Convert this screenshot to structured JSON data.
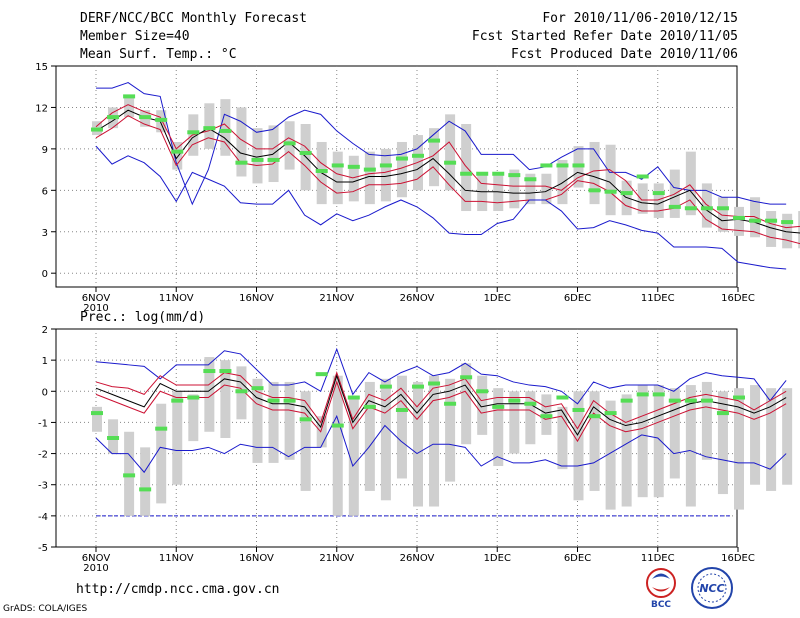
{
  "header": {
    "title": "DERF/NCC/BCC Monthly Forecast",
    "member_size": "Member Size=40",
    "variable": "Mean Surf. Temp.: °C",
    "period": "For 2010/11/06-2010/12/15",
    "started": "Fcst Started Refer Date 2010/11/05",
    "produced": "Fcst Produced Date 2010/11/06"
  },
  "footer": {
    "url": "http://cmdp.ncc.cma.gov.cn",
    "credit": "GrADS: COLA/IGES",
    "logo1_text": "BCC",
    "logo2_text": "NCC"
  },
  "colors": {
    "max": "#1a1acc",
    "min": "#1a1acc",
    "pct": "#cc1133",
    "mean": "#000000",
    "median": "#55dd55",
    "box": "#cfcfcf"
  },
  "chart_data": [
    {
      "type": "line",
      "title": "Mean Surf. Temp.: °C",
      "x_tick_labels": [
        "6NOV",
        "11NOV",
        "16NOV",
        "21NOV",
        "26NOV",
        "1DEC",
        "6DEC",
        "11DEC",
        "16DEC"
      ],
      "x_year_label": "2010",
      "y_tick_labels": [
        "0",
        "3",
        "6",
        "9",
        "12",
        "15"
      ],
      "ylim": [
        -1,
        15
      ],
      "grid": true,
      "series": [
        {
          "name": "max",
          "values": [
            13.4,
            13.4,
            13.8,
            13.0,
            12.8,
            8.0,
            5.0,
            7.5,
            11.5,
            11.0,
            10.2,
            10.4,
            11.3,
            11.8,
            11.5,
            10.3,
            9.4,
            8.6,
            8.5,
            8.6,
            9.0,
            10.0,
            11.0,
            10.3,
            8.6,
            8.6,
            8.6,
            7.5,
            7.7,
            8.4,
            9.0,
            9.0,
            7.3,
            7.3,
            6.8,
            7.7,
            6.2,
            6.0,
            6.0,
            5.5,
            5.5,
            5.2,
            5.0,
            5.0
          ]
        },
        {
          "name": "p90",
          "values": [
            10.6,
            11.6,
            12.2,
            11.7,
            11.3,
            9.0,
            10.0,
            10.3,
            10.8,
            9.7,
            9.0,
            9.0,
            9.8,
            9.2,
            8.0,
            7.2,
            6.9,
            7.2,
            7.3,
            7.6,
            8.0,
            8.5,
            9.5,
            7.8,
            6.5,
            6.4,
            6.3,
            6.3,
            6.3,
            6.0,
            6.9,
            7.4,
            7.5,
            6.7,
            5.3,
            5.3,
            5.7,
            6.4,
            5.0,
            4.2,
            4.1,
            4.1,
            3.6,
            3.3,
            3.4
          ]
        },
        {
          "name": "mean",
          "values": [
            10.3,
            11.0,
            11.8,
            11.3,
            11.0,
            8.3,
            9.8,
            10.5,
            9.8,
            8.7,
            8.4,
            8.6,
            9.5,
            8.5,
            7.3,
            6.6,
            6.6,
            7.0,
            7.0,
            7.2,
            7.5,
            8.3,
            7.2,
            6.0,
            5.9,
            5.9,
            5.8,
            5.8,
            5.9,
            6.5,
            7.3,
            7.0,
            6.6,
            5.5,
            5.1,
            5.0,
            5.5,
            6.0,
            4.6,
            3.8,
            3.9,
            3.7,
            3.3,
            3.0,
            2.9
          ]
        },
        {
          "name": "p10",
          "values": [
            9.8,
            10.5,
            11.4,
            10.8,
            10.4,
            7.8,
            9.3,
            9.8,
            9.5,
            8.0,
            7.8,
            7.9,
            8.8,
            7.8,
            6.6,
            5.8,
            5.9,
            6.4,
            6.4,
            6.5,
            6.8,
            7.7,
            6.4,
            5.2,
            5.2,
            5.1,
            5.2,
            5.3,
            5.3,
            5.7,
            6.7,
            6.5,
            5.9,
            4.9,
            4.5,
            4.5,
            4.7,
            5.3,
            3.9,
            3.2,
            3.1,
            3.0,
            2.6,
            2.4,
            2.1
          ]
        },
        {
          "name": "min",
          "values": [
            9.2,
            7.9,
            8.5,
            8.0,
            7.0,
            5.2,
            7.3,
            6.8,
            6.3,
            5.1,
            5.0,
            5.0,
            6.0,
            4.2,
            3.5,
            4.3,
            3.8,
            4.2,
            4.8,
            5.3,
            4.8,
            4.0,
            2.9,
            2.8,
            2.8,
            3.6,
            3.9,
            5.3,
            5.3,
            4.5,
            3.2,
            3.3,
            3.8,
            3.5,
            3.1,
            2.9,
            1.9,
            1.9,
            1.9,
            1.8,
            0.8,
            0.6,
            0.4,
            0.3
          ]
        }
      ],
      "median_markers": [
        10.4,
        11.3,
        12.8,
        11.3,
        11.1,
        8.8,
        10.2,
        10.5,
        10.3,
        8.0,
        8.2,
        8.2,
        9.4,
        8.7,
        7.4,
        7.8,
        7.7,
        7.5,
        7.8,
        8.3,
        8.5,
        9.6,
        8.0,
        7.2,
        7.2,
        7.2,
        7.1,
        6.8,
        7.8,
        7.8,
        7.8,
        6.0,
        5.9,
        5.8,
        7.0,
        5.8,
        4.8,
        4.7,
        4.7,
        4.7,
        4.0,
        3.8,
        3.8,
        3.7
      ],
      "box_low": [
        10.0,
        10.5,
        11.3,
        10.6,
        10.2,
        7.5,
        8.5,
        9.0,
        8.5,
        7.0,
        6.5,
        6.6,
        7.5,
        6.0,
        5.0,
        5.0,
        5.2,
        5.0,
        5.2,
        5.5,
        6.0,
        6.3,
        6.0,
        4.5,
        4.5,
        4.5,
        4.7,
        5.0,
        5.0,
        5.0,
        6.2,
        5.0,
        4.2,
        4.2,
        4.3,
        4.0,
        4.0,
        4.2,
        3.3,
        3.0,
        2.7,
        2.6,
        1.9,
        1.8,
        1.8
      ],
      "box_high": [
        11.0,
        12.0,
        12.8,
        11.8,
        11.8,
        9.5,
        11.5,
        12.3,
        12.6,
        12.0,
        10.5,
        10.7,
        11.0,
        10.8,
        9.5,
        8.8,
        8.5,
        8.8,
        9.0,
        9.5,
        10.0,
        10.5,
        11.5,
        10.8,
        7.2,
        7.3,
        7.5,
        7.2,
        7.2,
        8.2,
        9.2,
        9.5,
        9.3,
        6.7,
        6.5,
        6.5,
        7.5,
        8.8,
        6.5,
        5.5,
        4.8,
        5.5,
        4.5,
        4.3,
        4.5,
        6.0
      ]
    },
    {
      "type": "line",
      "title": "Prec.: log(mm/d)",
      "x_tick_labels": [
        "6NOV",
        "11NOV",
        "16NOV",
        "21NOV",
        "26NOV",
        "1DEC",
        "6DEC",
        "11DEC",
        "16DEC"
      ],
      "x_year_label": "2010",
      "y_tick_labels": [
        "-5",
        "-4",
        "-3",
        "-2",
        "-1",
        "0",
        "1",
        "2"
      ],
      "ylim": [
        -5,
        2
      ],
      "grid": true,
      "floor_value": -4,
      "series": [
        {
          "name": "max",
          "values": [
            0.95,
            0.9,
            0.85,
            0.8,
            0.4,
            0.85,
            0.85,
            0.85,
            1.3,
            1.2,
            0.7,
            0.2,
            0.2,
            0.3,
            0.0,
            1.35,
            -0.1,
            0.6,
            0.3,
            0.6,
            0.8,
            0.5,
            0.6,
            0.9,
            0.55,
            0.5,
            0.3,
            0.2,
            0.15,
            0.0,
            -0.4,
            0.3,
            0.1,
            0.2,
            0.2,
            0.2,
            0.0,
            0.4,
            0.6,
            0.5,
            0.45,
            0.4,
            -0.3,
            0.35
          ]
        },
        {
          "name": "p90",
          "values": [
            0.3,
            0.15,
            0.1,
            -0.1,
            0.5,
            0.2,
            0.2,
            0.2,
            0.6,
            0.5,
            0.0,
            -0.2,
            -0.2,
            -0.3,
            -1.0,
            0.6,
            -0.9,
            -0.1,
            -0.3,
            0.1,
            -0.5,
            0.1,
            0.2,
            0.4,
            -0.3,
            -0.2,
            -0.2,
            -0.2,
            -0.5,
            -0.4,
            -1.2,
            -0.3,
            -0.7,
            -1.0,
            -0.8,
            -0.6,
            -0.4,
            -0.2,
            -0.1,
            -0.2,
            -0.3,
            -0.6,
            -0.3,
            0.0
          ]
        },
        {
          "name": "mean",
          "values": [
            0.1,
            -0.1,
            -0.3,
            -0.5,
            0.25,
            0.0,
            0.0,
            0.0,
            0.4,
            0.3,
            -0.2,
            -0.4,
            -0.4,
            -0.5,
            -1.15,
            0.5,
            -1.0,
            -0.3,
            -0.5,
            -0.1,
            -0.7,
            -0.1,
            0.0,
            0.2,
            -0.5,
            -0.4,
            -0.4,
            -0.4,
            -0.7,
            -0.6,
            -1.4,
            -0.5,
            -0.9,
            -1.1,
            -1.0,
            -0.8,
            -0.6,
            -0.4,
            -0.3,
            -0.4,
            -0.5,
            -0.7,
            -0.5,
            -0.2
          ]
        },
        {
          "name": "p10",
          "values": [
            -0.1,
            -0.3,
            -0.5,
            -0.7,
            0.0,
            -0.2,
            -0.2,
            -0.2,
            0.2,
            0.1,
            -0.4,
            -0.6,
            -0.6,
            -0.7,
            -1.3,
            0.3,
            -1.2,
            -0.5,
            -0.7,
            -0.3,
            -0.9,
            -0.3,
            -0.2,
            0.0,
            -0.7,
            -0.6,
            -0.6,
            -0.6,
            -0.9,
            -0.8,
            -1.6,
            -0.7,
            -1.1,
            -1.3,
            -1.2,
            -1.0,
            -0.8,
            -0.6,
            -0.5,
            -0.6,
            -0.7,
            -0.9,
            -0.7,
            -0.4
          ]
        },
        {
          "name": "min",
          "values": [
            -1.5,
            -2.0,
            -2.0,
            -2.6,
            -1.8,
            -1.9,
            -1.9,
            -1.8,
            -2.0,
            -1.7,
            -1.8,
            -1.8,
            -2.1,
            -1.8,
            -1.8,
            -0.8,
            -2.4,
            -1.8,
            -1.1,
            -1.6,
            -2.0,
            -1.7,
            -1.7,
            -1.8,
            -2.4,
            -2.1,
            -2.3,
            -2.3,
            -2.2,
            -2.4,
            -2.4,
            -2.3,
            -2.0,
            -1.7,
            -1.4,
            -1.5,
            -2.0,
            -1.9,
            -2.1,
            -2.2,
            -2.3,
            -2.3,
            -2.5,
            -2.0
          ]
        }
      ],
      "median_markers": [
        -0.7,
        -1.5,
        -2.7,
        -3.15,
        -1.2,
        -0.3,
        -0.2,
        0.65,
        0.65,
        0.0,
        0.1,
        -0.3,
        -0.3,
        -0.9,
        0.55,
        -1.1,
        -0.2,
        -0.5,
        0.15,
        -0.6,
        0.15,
        0.25,
        -0.4,
        0.45,
        0.0,
        -0.5,
        -0.3,
        -0.4,
        -0.8,
        -0.2,
        -0.6,
        -0.8,
        -0.7,
        -0.3,
        -0.1,
        -0.1,
        -0.3,
        -0.3,
        -0.3,
        -0.7,
        -0.2
      ],
      "box_low": [
        -1.3,
        -2.0,
        -4.0,
        -4.0,
        -3.6,
        -3.0,
        -1.6,
        -1.3,
        -1.5,
        -0.9,
        -2.3,
        -2.3,
        -2.2,
        -3.2,
        -1.8,
        -4.0,
        -4.0,
        -3.2,
        -3.5,
        -2.8,
        -3.7,
        -3.7,
        -2.9,
        -1.7,
        -1.4,
        -2.4,
        -2.0,
        -1.7,
        -1.4,
        -2.5,
        -3.5,
        -3.2,
        -3.8,
        -3.7,
        -3.4,
        -3.4,
        -2.8,
        -3.7,
        -2.2,
        -3.3,
        -3.8,
        -3.0,
        -3.2,
        -3.0
      ],
      "box_high": [
        -0.5,
        -0.9,
        -1.3,
        -1.8,
        -0.4,
        0.0,
        -0.1,
        1.1,
        1.0,
        0.8,
        0.4,
        0.3,
        0.3,
        0.0,
        -0.8,
        0.5,
        -0.2,
        0.3,
        0.4,
        0.5,
        0.3,
        0.5,
        0.4,
        0.9,
        0.5,
        0.1,
        0.0,
        0.0,
        -0.1,
        -0.5,
        0.0,
        0.0,
        -0.3,
        -0.1,
        0.2,
        0.2,
        0.1,
        0.2,
        0.3,
        0.0,
        0.1,
        0.2,
        0.1,
        0.1
      ]
    }
  ]
}
